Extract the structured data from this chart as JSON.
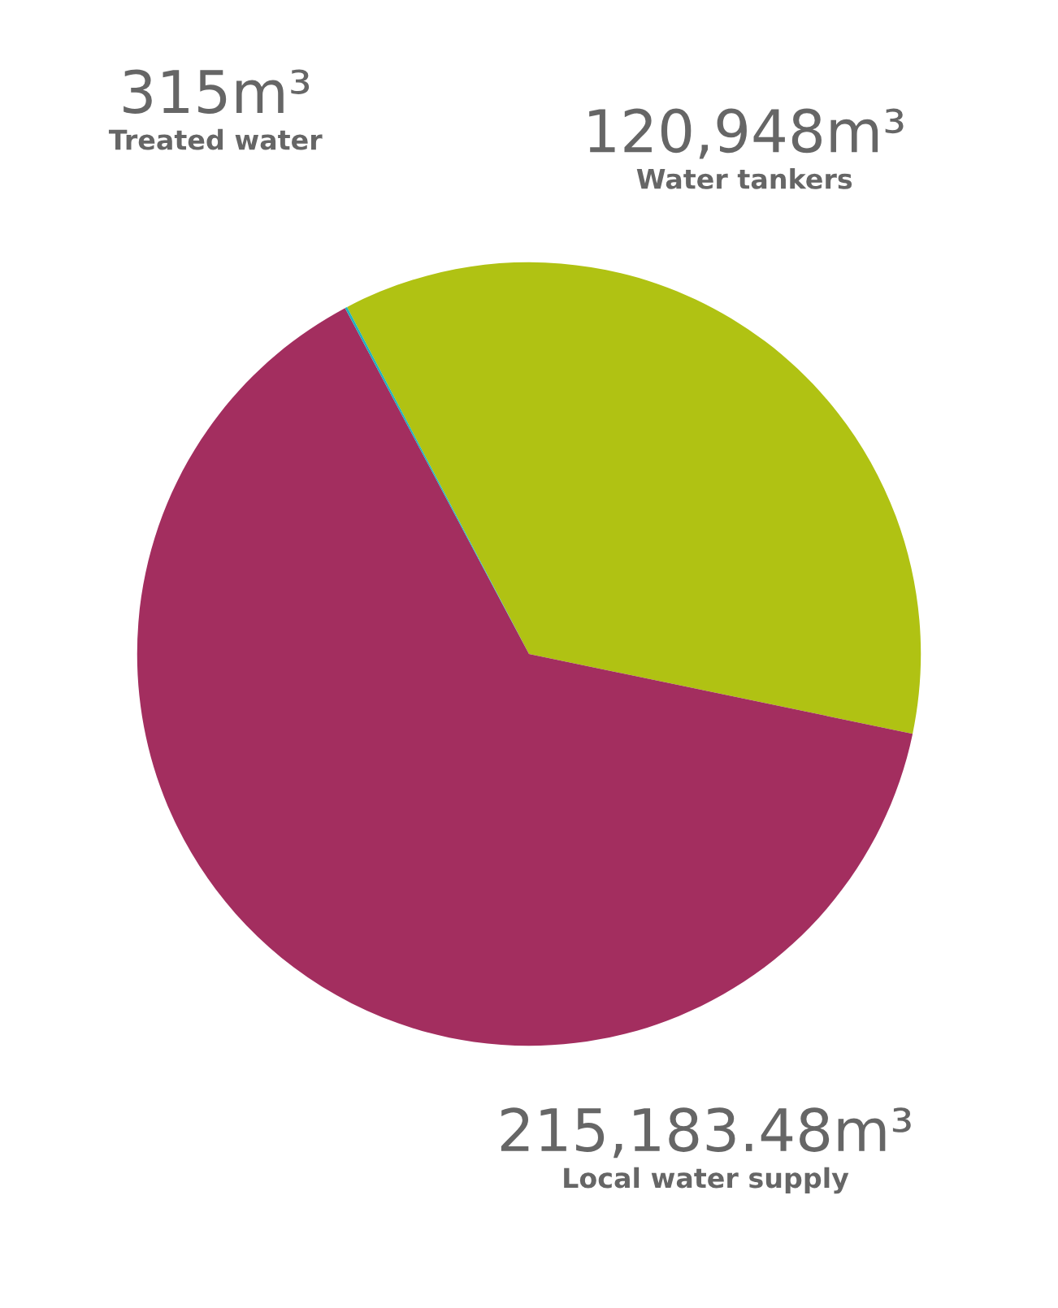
{
  "chart_data": {
    "type": "pie",
    "categories": [
      "Treated water",
      "Water tankers",
      "Local water supply"
    ],
    "values": [
      315,
      120948,
      215183.48
    ],
    "value_labels": [
      "315m³",
      "120,948m³",
      "215,183.48m³"
    ],
    "colors": [
      "#1fb0bd",
      "#b0c213",
      "#a32e5f"
    ],
    "legend": false
  }
}
